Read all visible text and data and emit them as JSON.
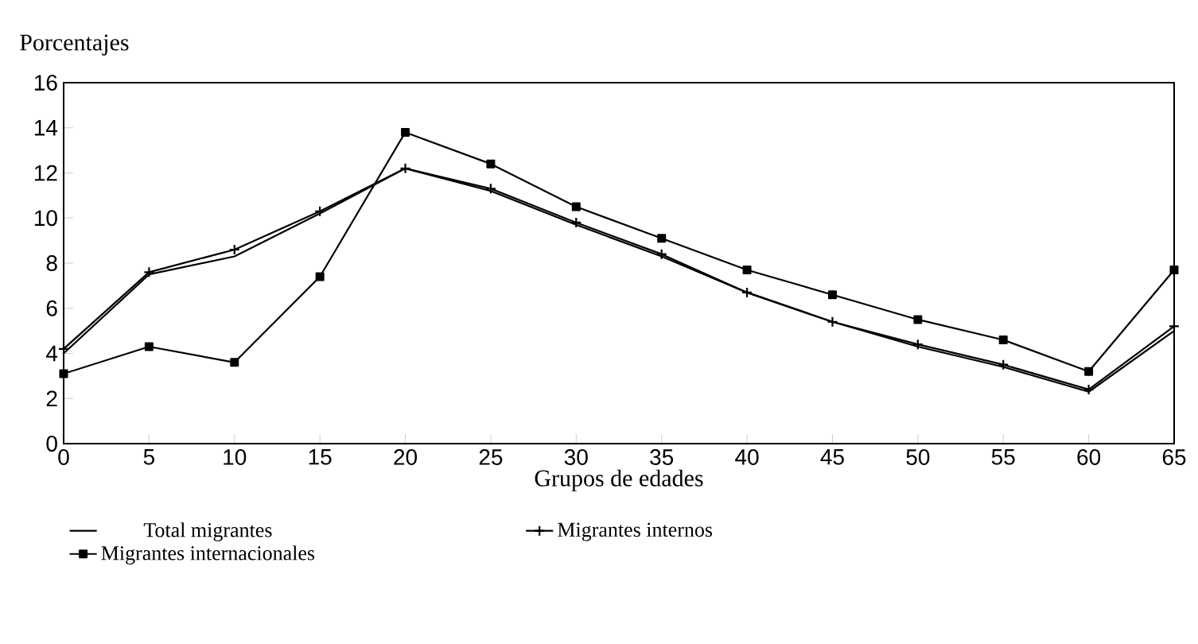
{
  "chart_data": {
    "type": "line",
    "xlabel": "Grupos de edades",
    "ylabel": "Porcentajes",
    "x": [
      0,
      5,
      10,
      15,
      20,
      25,
      30,
      35,
      40,
      45,
      50,
      55,
      60,
      65
    ],
    "xlim": [
      0,
      65
    ],
    "xticks": [
      0,
      5,
      10,
      15,
      20,
      25,
      30,
      35,
      40,
      45,
      50,
      55,
      60,
      65
    ],
    "ylim": [
      0,
      16
    ],
    "yticks": [
      0,
      2,
      4,
      6,
      8,
      10,
      12,
      14,
      16
    ],
    "grid": false,
    "legend": "bottom",
    "series": [
      {
        "name": "Total migrantes",
        "color": "#000000",
        "marker": "none",
        "values": [
          4.0,
          7.5,
          8.3,
          10.2,
          12.2,
          11.2,
          9.7,
          8.3,
          6.7,
          5.4,
          4.3,
          3.4,
          2.3,
          5.0
        ]
      },
      {
        "name": "Migrantes internos",
        "color": "#000000",
        "marker": "cross",
        "values": [
          4.2,
          7.6,
          8.6,
          10.3,
          12.2,
          11.3,
          9.8,
          8.4,
          6.7,
          5.4,
          4.4,
          3.5,
          2.4,
          5.2
        ]
      },
      {
        "name": "Migrantes internacionales",
        "color": "#000000",
        "marker": "square",
        "values": [
          3.1,
          4.3,
          3.6,
          7.4,
          13.8,
          12.4,
          10.5,
          9.1,
          7.7,
          6.6,
          5.5,
          4.6,
          3.2,
          7.7
        ]
      }
    ]
  }
}
